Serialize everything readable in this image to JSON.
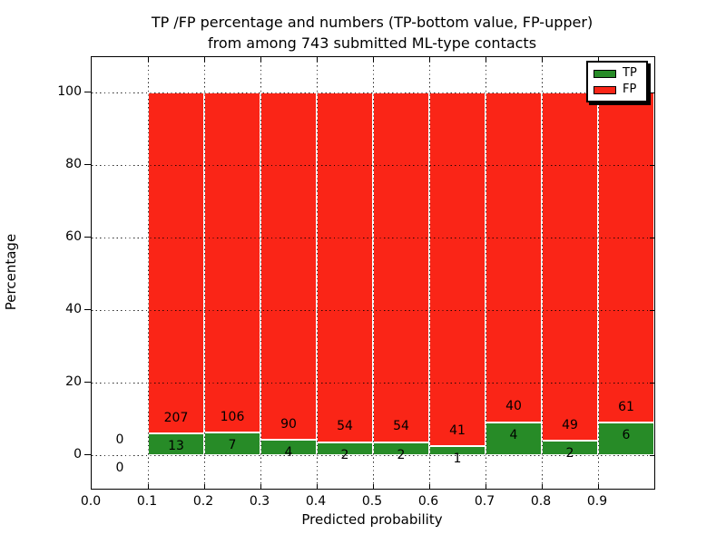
{
  "figure": {
    "title_line1": "TP /FP percentage and numbers (TP-bottom value, FP-upper)",
    "title_line2": "from among 743 submitted ML-type contacts"
  },
  "axes": {
    "xlabel": "Predicted probability",
    "ylabel": "Percentage"
  },
  "legend": {
    "position": "upper right",
    "items": [
      {
        "label": "TP",
        "color": "#278b27"
      },
      {
        "label": "FP",
        "color": "#fa2517"
      }
    ]
  },
  "chart_data": {
    "type": "bar",
    "stacked": true,
    "normalized_to_percent": 100,
    "title": "TP /FP percentage and numbers (TP-bottom value, FP-upper) from among 743 submitted ML-type contacts",
    "xlabel": "Predicted probability",
    "ylabel": "Percentage",
    "total_submitted_contacts": 743,
    "bin_width": 0.1,
    "bin_starts": [
      0.0,
      0.1,
      0.2,
      0.3,
      0.4,
      0.5,
      0.6,
      0.7,
      0.8,
      0.9
    ],
    "series": [
      {
        "name": "TP",
        "stack_position": "bottom",
        "color": "#278b27",
        "counts": [
          0,
          13,
          7,
          4,
          2,
          2,
          1,
          4,
          2,
          6
        ]
      },
      {
        "name": "FP",
        "stack_position": "top",
        "color": "#fa2517",
        "counts": [
          0,
          207,
          106,
          90,
          54,
          54,
          41,
          40,
          49,
          61
        ]
      }
    ],
    "tp_percent_of_bin": [
      0,
      5.91,
      6.19,
      4.26,
      3.57,
      3.57,
      2.38,
      9.09,
      3.92,
      8.96
    ],
    "fp_percent_of_bin": [
      0,
      94.09,
      93.81,
      95.74,
      96.43,
      96.43,
      97.62,
      90.91,
      96.08,
      91.04
    ],
    "x_tick_labels": [
      "0.0",
      "0.1",
      "0.2",
      "0.3",
      "0.4",
      "0.5",
      "0.6",
      "0.7",
      "0.8",
      "0.9"
    ],
    "y_tick_values": [
      0,
      20,
      40,
      60,
      80,
      100
    ],
    "xlim": [
      0.0,
      1.0
    ],
    "ylim": [
      -9.5,
      109.8
    ],
    "grid": true,
    "grid_style": "dotted",
    "bar_edge_color": "#ffffff",
    "legend_position": "upper right"
  }
}
